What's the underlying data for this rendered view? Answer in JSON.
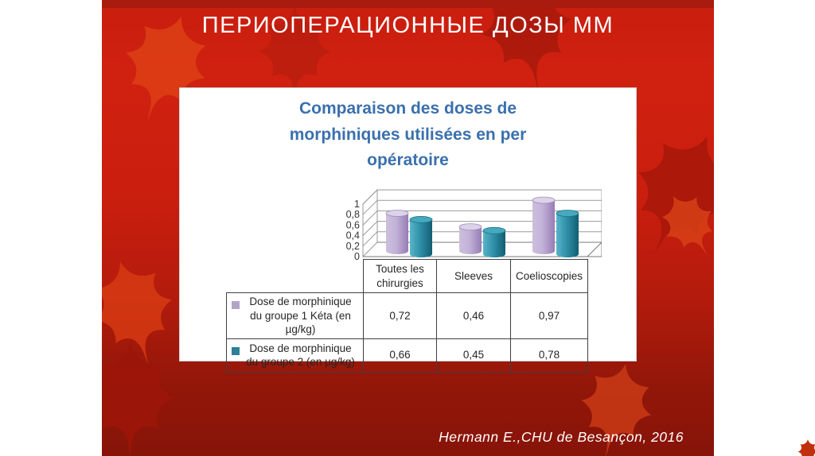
{
  "slide": {
    "title": "ПЕРИОПЕРАЦИОННЫЕ ДОЗЫ ММ",
    "citation": "Hermann E.,CHU de Besançon, 2016"
  },
  "colors": {
    "slide_background": "#cb1e0e",
    "slide_top_band": "#a91b0e",
    "title_text": "#ffffff",
    "chart_title_text": "#3a70ad",
    "table_border": "#404040",
    "leaf_bright": "#d84418",
    "leaf_dark": "#a5170a"
  },
  "chart_data": {
    "type": "bar",
    "subtype": "3d-cylinder",
    "title": "Comparaison des doses de morphiniques utilisées en per opératoire",
    "categories": [
      "Toutes les chirurgies",
      "Sleeves",
      "Coelioscopies"
    ],
    "series": [
      {
        "name": "Dose de morphinique du groupe 1 Kéta (en µg/kg)",
        "values": [
          0.72,
          0.46,
          0.97
        ],
        "display_values": [
          "0,72",
          "0,46",
          "0,97"
        ],
        "legend_color": "#b2a4c7",
        "body_light": "#cdbfdf",
        "body_mid": "#c3b2d8",
        "body_dark": "#967cb4",
        "top_fill": "#dcd3ea",
        "outline": "#9c8bb6"
      },
      {
        "name": "Dose de morphinique du groupe 2 (en µg/kg)",
        "values": [
          0.66,
          0.45,
          0.78
        ],
        "display_values": [
          "0,66",
          "0,45",
          "0,78"
        ],
        "legend_color": "#2e8096",
        "body_light": "#59b4c8",
        "body_mid": "#2f91a9",
        "body_dark": "#135d73",
        "top_fill": "#46a9bd",
        "outline": "#1f7086"
      }
    ],
    "y_ticks": [
      "1",
      "0,8",
      "0,6",
      "0,4",
      "0,2",
      "0"
    ],
    "ylim": [
      0,
      1
    ],
    "grid": true,
    "legend_position": "table-left",
    "xlabel": "",
    "ylabel": ""
  }
}
